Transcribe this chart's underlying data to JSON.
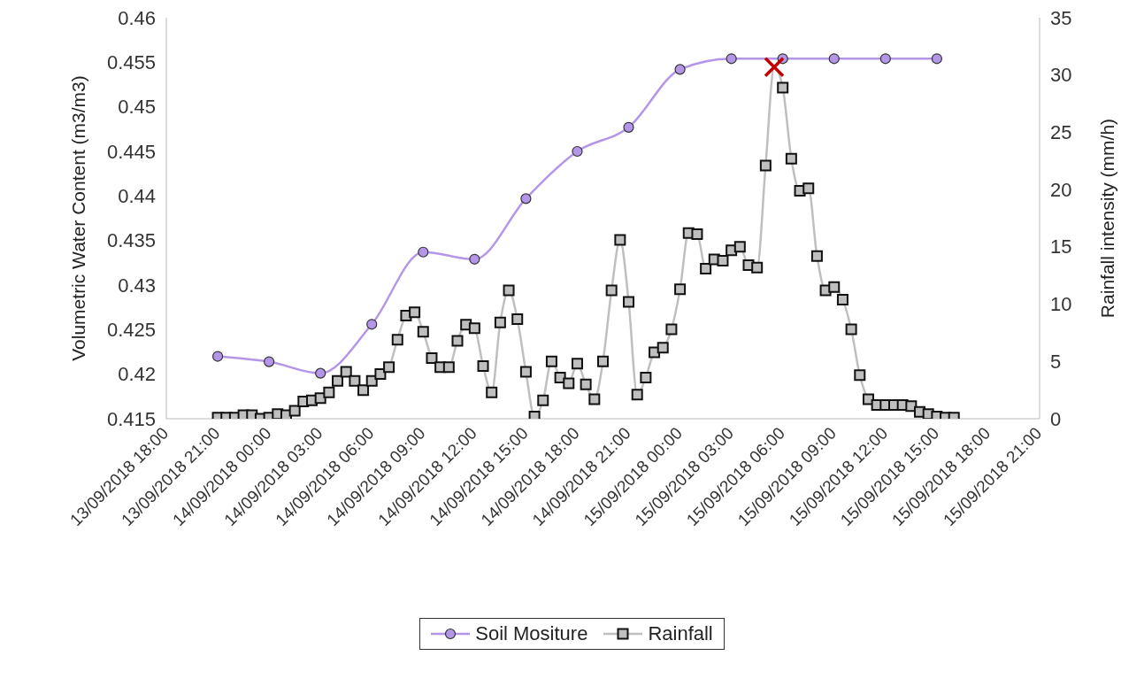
{
  "chart_data": {
    "type": "line",
    "xlabel": null,
    "ylabel": "Volumetric Water Content  (m3/m3)",
    "y2label": "Rainfall intensity (mm/h)",
    "xlim": [
      "2018-09-13T18:00",
      "2018-09-15T21:00"
    ],
    "xticks": [
      {
        "value": "2018-09-13T18:00",
        "label": "13/09/2018 18:00"
      },
      {
        "value": "2018-09-13T21:00",
        "label": "13/09/2018 21:00"
      },
      {
        "value": "2018-09-14T00:00",
        "label": "14/09/2018 00:00"
      },
      {
        "value": "2018-09-14T03:00",
        "label": "14/09/2018 03:00"
      },
      {
        "value": "2018-09-14T06:00",
        "label": "14/09/2018 06:00"
      },
      {
        "value": "2018-09-14T09:00",
        "label": "14/09/2018 09:00"
      },
      {
        "value": "2018-09-14T12:00",
        "label": "14/09/2018 12:00"
      },
      {
        "value": "2018-09-14T15:00",
        "label": "14/09/2018 15:00"
      },
      {
        "value": "2018-09-14T18:00",
        "label": "14/09/2018 18:00"
      },
      {
        "value": "2018-09-14T21:00",
        "label": "14/09/2018 21:00"
      },
      {
        "value": "2018-09-15T00:00",
        "label": "15/09/2018 00:00"
      },
      {
        "value": "2018-09-15T03:00",
        "label": "15/09/2018 03:00"
      },
      {
        "value": "2018-09-15T06:00",
        "label": "15/09/2018 06:00"
      },
      {
        "value": "2018-09-15T09:00",
        "label": "15/09/2018 09:00"
      },
      {
        "value": "2018-09-15T12:00",
        "label": "15/09/2018 12:00"
      },
      {
        "value": "2018-09-15T15:00",
        "label": "15/09/2018 15:00"
      },
      {
        "value": "2018-09-15T18:00",
        "label": "15/09/2018 18:00"
      },
      {
        "value": "2018-09-15T21:00",
        "label": "15/09/2018 21:00"
      }
    ],
    "ylim": [
      0.415,
      0.46
    ],
    "yticks": [
      0.415,
      0.42,
      0.425,
      0.43,
      0.435,
      0.44,
      0.445,
      0.45,
      0.455,
      0.46
    ],
    "y2lim": [
      0,
      35
    ],
    "y2ticks": [
      0,
      5,
      10,
      15,
      20,
      25,
      30,
      35
    ],
    "grid": false,
    "legend": "bottom",
    "line_style": "solid",
    "series": [
      {
        "name": "Soil Mositure",
        "marker": "circle",
        "color": "#b496e8",
        "x": [
          "2018-09-13T21:00",
          "2018-09-14T00:00",
          "2018-09-14T03:00",
          "2018-09-14T06:00",
          "2018-09-14T09:00",
          "2018-09-14T12:00",
          "2018-09-14T15:00",
          "2018-09-14T18:00",
          "2018-09-14T21:00",
          "2018-09-15T00:00",
          "2018-09-15T03:00",
          "2018-09-15T06:00",
          "2018-09-15T09:00",
          "2018-09-15T12:00",
          "2018-09-15T15:00"
        ],
        "values": [
          0.422,
          0.4214,
          0.4201,
          0.4256,
          0.4337,
          0.4329,
          0.4397,
          0.445,
          0.4477,
          0.4542,
          0.4554,
          0.4554,
          0.4554,
          0.4554,
          0.4554
        ]
      },
      {
        "name": "Rainfall",
        "marker": "square",
        "color": "#bfbfbf",
        "axis": "y2",
        "x": [
          "2018-09-13T21:00",
          "2018-09-13T21:30",
          "2018-09-13T22:00",
          "2018-09-13T22:30",
          "2018-09-13T23:00",
          "2018-09-13T23:30",
          "2018-09-14T00:00",
          "2018-09-14T00:30",
          "2018-09-14T01:00",
          "2018-09-14T01:30",
          "2018-09-14T02:00",
          "2018-09-14T02:30",
          "2018-09-14T03:00",
          "2018-09-14T03:30",
          "2018-09-14T04:00",
          "2018-09-14T04:30",
          "2018-09-14T05:00",
          "2018-09-14T05:30",
          "2018-09-14T06:00",
          "2018-09-14T06:30",
          "2018-09-14T07:00",
          "2018-09-14T07:30",
          "2018-09-14T08:00",
          "2018-09-14T08:30",
          "2018-09-14T09:00",
          "2018-09-14T09:30",
          "2018-09-14T10:00",
          "2018-09-14T10:30",
          "2018-09-14T11:00",
          "2018-09-14T11:30",
          "2018-09-14T12:00",
          "2018-09-14T12:30",
          "2018-09-14T13:00",
          "2018-09-14T13:30",
          "2018-09-14T14:00",
          "2018-09-14T14:30",
          "2018-09-14T15:00",
          "2018-09-14T15:30",
          "2018-09-14T16:00",
          "2018-09-14T16:30",
          "2018-09-14T17:00",
          "2018-09-14T17:30",
          "2018-09-14T18:00",
          "2018-09-14T18:30",
          "2018-09-14T19:00",
          "2018-09-14T19:30",
          "2018-09-14T20:00",
          "2018-09-14T20:30",
          "2018-09-14T21:00",
          "2018-09-14T21:30",
          "2018-09-14T22:00",
          "2018-09-14T22:30",
          "2018-09-14T23:00",
          "2018-09-14T23:30",
          "2018-09-15T00:00",
          "2018-09-15T00:30",
          "2018-09-15T01:00",
          "2018-09-15T01:30",
          "2018-09-15T02:00",
          "2018-09-15T02:30",
          "2018-09-15T03:00",
          "2018-09-15T03:30",
          "2018-09-15T04:00",
          "2018-09-15T04:30",
          "2018-09-15T05:00",
          "2018-09-15T05:30",
          "2018-09-15T06:00",
          "2018-09-15T06:30",
          "2018-09-15T07:00",
          "2018-09-15T07:30",
          "2018-09-15T08:00",
          "2018-09-15T08:30",
          "2018-09-15T09:00",
          "2018-09-15T09:30",
          "2018-09-15T10:00",
          "2018-09-15T10:30",
          "2018-09-15T11:00",
          "2018-09-15T11:30",
          "2018-09-15T12:00",
          "2018-09-15T12:30",
          "2018-09-15T13:00",
          "2018-09-15T13:30",
          "2018-09-15T14:00",
          "2018-09-15T14:30",
          "2018-09-15T15:00",
          "2018-09-15T15:30",
          "2018-09-15T16:00"
        ],
        "values": [
          0.1,
          0.1,
          0.1,
          0.3,
          0.3,
          0,
          0.1,
          0.4,
          0.3,
          0.7,
          1.5,
          1.6,
          1.8,
          2.3,
          3.3,
          4.1,
          3.3,
          2.5,
          3.3,
          3.9,
          4.5,
          6.9,
          9,
          9.3,
          7.6,
          5.3,
          4.5,
          4.5,
          6.8,
          8.2,
          7.9,
          4.6,
          2.3,
          8.4,
          11.2,
          8.7,
          4.1,
          0.2,
          1.6,
          5,
          3.6,
          3.1,
          4.8,
          3,
          1.7,
          5,
          11.2,
          15.6,
          10.2,
          2.1,
          3.6,
          5.8,
          6.2,
          7.8,
          11.3,
          16.2,
          16.1,
          13.1,
          13.9,
          13.8,
          14.7,
          15,
          13.4,
          13.2,
          22.1,
          30.7,
          28.9,
          22.7,
          19.9,
          20.1,
          14.2,
          11.2,
          11.5,
          10.4,
          7.8,
          3.8,
          1.7,
          1.2,
          1.2,
          1.2,
          1.2,
          1.1,
          0.6,
          0.4,
          0.2,
          0.1,
          0.1
        ]
      },
      {
        "type": "scatter",
        "marker": "cross",
        "color": "#c00000",
        "axis": "y2",
        "x": [
          "2018-09-15T05:30"
        ],
        "values": [
          30.7
        ]
      }
    ]
  }
}
